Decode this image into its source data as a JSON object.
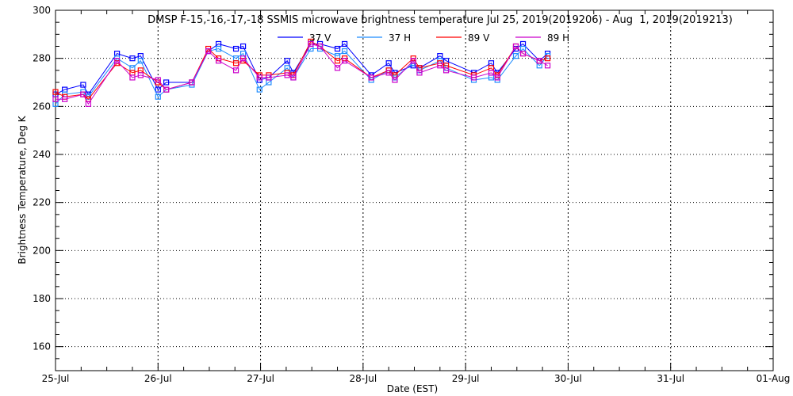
{
  "chart_data": {
    "type": "line",
    "title": "DMSP F-15,-16,-17,-18 SSMIS microwave brightness temperature Jul 25, 2019(2019206) - Aug  1, 2019(2019213)",
    "xlabel": "Date (EST)",
    "ylabel": "Brightness Temperature, Deg K",
    "ylim": [
      150,
      300
    ],
    "yticks": [
      160,
      180,
      200,
      220,
      240,
      260,
      280,
      300
    ],
    "xlim": [
      0,
      7
    ],
    "xtick_labels": [
      "25-Jul",
      "26-Jul",
      "27-Jul",
      "28-Jul",
      "29-Jul",
      "30-Jul",
      "31-Jul",
      "01-Aug"
    ],
    "x_units": "days since 25-Jul 00:00",
    "grid": true,
    "legend_position": "top-center",
    "x": [
      0.0,
      0.09,
      0.27,
      0.32,
      0.6,
      0.75,
      0.83,
      1.0,
      1.08,
      1.33,
      1.49,
      1.59,
      1.76,
      1.83,
      1.99,
      2.08,
      2.26,
      2.32,
      2.49,
      2.58,
      2.75,
      2.82,
      3.08,
      3.25,
      3.31,
      3.49,
      3.55,
      3.75,
      3.81,
      4.08,
      4.25,
      4.31,
      4.49,
      4.56,
      4.72,
      4.8
    ],
    "series": [
      {
        "name": "37 V",
        "color": "#0000ff",
        "values": [
          265,
          267,
          269,
          265,
          282,
          280,
          281,
          267,
          270,
          270,
          283,
          286,
          284,
          285,
          271,
          272,
          279,
          274,
          286,
          286,
          284,
          286,
          273,
          278,
          274,
          277,
          276,
          281,
          279,
          274,
          278,
          274,
          284,
          286,
          279,
          282
        ]
      },
      {
        "name": "37 H",
        "color": "#1e8cff",
        "values": [
          261,
          265,
          266,
          264,
          280,
          276,
          279,
          264,
          267,
          269,
          283,
          284,
          280,
          282,
          267,
          270,
          276,
          272,
          284,
          284,
          281,
          283,
          271,
          275,
          272,
          278,
          275,
          279,
          276,
          271,
          272,
          271,
          281,
          284,
          277,
          281
        ]
      },
      {
        "name": "89 V",
        "color": "#ff0000",
        "values": [
          266,
          264,
          265,
          263,
          278,
          274,
          275,
          270,
          267,
          270,
          284,
          280,
          278,
          279,
          273,
          273,
          274,
          273,
          287,
          285,
          279,
          280,
          272,
          275,
          273,
          280,
          276,
          278,
          277,
          273,
          276,
          273,
          285,
          282,
          279,
          280
        ]
      },
      {
        "name": "89 H",
        "color": "#cc00cc",
        "values": [
          263,
          263,
          265,
          261,
          279,
          272,
          273,
          271,
          267,
          270,
          283,
          279,
          275,
          280,
          272,
          272,
          273,
          272,
          286,
          285,
          276,
          279,
          272,
          274,
          271,
          279,
          274,
          277,
          275,
          272,
          274,
          272,
          285,
          282,
          279,
          277
        ]
      }
    ]
  }
}
